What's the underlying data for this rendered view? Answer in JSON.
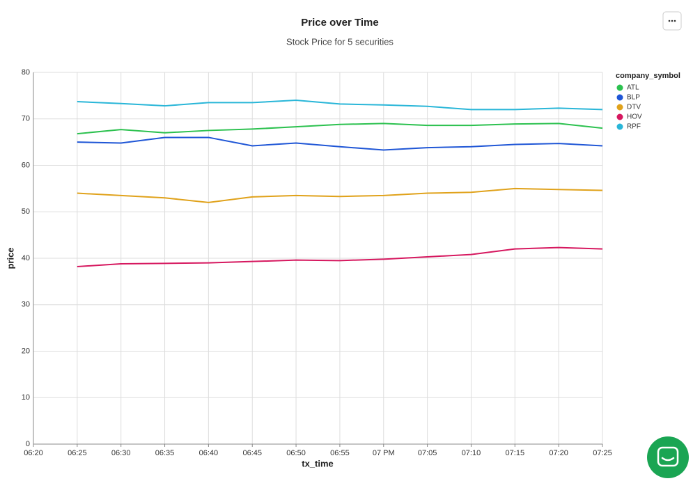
{
  "chart_data": {
    "type": "line",
    "title": "Price over Time",
    "subtitle": "Stock Price for 5 securities",
    "x_label": "tx_time",
    "y_label": "price",
    "legend_title": "company_symbol",
    "legend": "top-right",
    "grid": true,
    "x": [
      "06:25",
      "06:30",
      "06:35",
      "06:40",
      "06:45",
      "06:50",
      "06:55",
      "07:00",
      "07:05",
      "07:10",
      "07:15",
      "07:20",
      "07:25"
    ],
    "xlim": [
      "06:20",
      "07:25"
    ],
    "xticks": [
      "06:20",
      "06:25",
      "06:30",
      "06:35",
      "06:40",
      "06:45",
      "06:50",
      "06:55",
      {
        "value": "07:00",
        "label": "07 PM"
      },
      "07:05",
      "07:10",
      "07:15",
      "07:20",
      "07:25"
    ],
    "ylim": [
      0,
      80
    ],
    "yticks": [
      0,
      10,
      20,
      30,
      40,
      50,
      60,
      70,
      80
    ],
    "series": [
      {
        "name": "ATL",
        "color": "#2cc14f",
        "values": [
          66.8,
          67.7,
          67.0,
          67.5,
          67.8,
          68.3,
          68.8,
          69.0,
          68.6,
          68.6,
          68.9,
          69.0,
          68.0
        ]
      },
      {
        "name": "BLP",
        "color": "#1f56d6",
        "values": [
          65.0,
          64.8,
          66.0,
          66.0,
          64.2,
          64.8,
          64.0,
          63.3,
          63.8,
          64.0,
          64.5,
          64.7,
          64.2
        ]
      },
      {
        "name": "DTV",
        "color": "#e0a21b",
        "values": [
          54.0,
          53.5,
          53.0,
          52.0,
          53.2,
          53.5,
          53.3,
          53.5,
          54.0,
          54.2,
          55.0,
          54.8,
          54.6
        ]
      },
      {
        "name": "HOV",
        "color": "#d6185f",
        "values": [
          38.2,
          38.8,
          38.9,
          39.0,
          39.3,
          39.6,
          39.5,
          39.8,
          40.3,
          40.8,
          42.0,
          42.3,
          42.0
        ]
      },
      {
        "name": "RPF",
        "color": "#29b6d8",
        "values": [
          73.7,
          73.3,
          72.8,
          73.5,
          73.5,
          74.0,
          73.2,
          73.0,
          72.7,
          72.0,
          72.0,
          72.3,
          72.0
        ]
      }
    ]
  }
}
